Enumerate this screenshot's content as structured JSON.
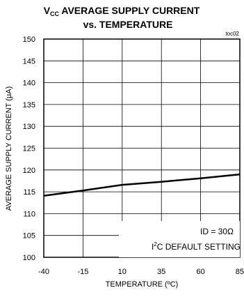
{
  "title": {
    "line1_main": "V",
    "line1_sub": "CC",
    "line1_rest": " AVERAGE SUPPLY CURRENT",
    "line2": "vs. TEMPERATURE"
  },
  "figure_tag": "toc02",
  "annotation": {
    "line1": "ID = 30Ω",
    "line2_prefix": "I",
    "line2_sup": "2",
    "line2_rest": "C DEFAULT SETTING"
  },
  "chart_data": {
    "type": "line",
    "title": "VCC AVERAGE SUPPLY CURRENT vs. TEMPERATURE",
    "xlabel": "TEMPERATURE (ºC)",
    "ylabel": "AVERAGE SUPPLY CURRENT (μA)",
    "xlim": [
      -40,
      85
    ],
    "ylim": [
      100,
      150
    ],
    "x_ticks": [
      -40,
      -15,
      10,
      35,
      60,
      85
    ],
    "y_ticks": [
      100,
      105,
      110,
      115,
      120,
      125,
      130,
      135,
      140,
      145,
      150
    ],
    "grid": true,
    "series": [
      {
        "x": [
          -40,
          -15,
          10,
          35,
          60,
          85
        ],
        "values": [
          114.1,
          115.3,
          116.6,
          117.3,
          118.1,
          119.0
        ]
      }
    ]
  }
}
